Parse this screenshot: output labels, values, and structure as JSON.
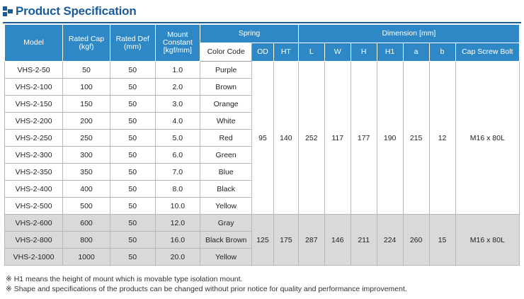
{
  "title": "Product Specification",
  "headers": {
    "model": "Model",
    "rated_cap": [
      "Rated Cap",
      "(kgf)"
    ],
    "rated_def": [
      "Rated Def",
      "(mm)"
    ],
    "mount_constant": [
      "Mount",
      "Constant",
      "[kgf/mm]"
    ],
    "spring": "Spring",
    "dimension": "Dimension [mm]",
    "color_code": "Color Code",
    "od": "OD",
    "ht": "HT",
    "l": "L",
    "w": "W",
    "h": "H",
    "h1": "H1",
    "a": "a",
    "b": "b",
    "cap_screw_bolt": "Cap Screw Bolt"
  },
  "rows": [
    {
      "model": "VHS-2-50",
      "cap": "50",
      "def": "50",
      "constant": "1.0",
      "color": "Purple"
    },
    {
      "model": "VHS-2-100",
      "cap": "100",
      "def": "50",
      "constant": "2.0",
      "color": "Brown"
    },
    {
      "model": "VHS-2-150",
      "cap": "150",
      "def": "50",
      "constant": "3.0",
      "color": "Orange"
    },
    {
      "model": "VHS-2-200",
      "cap": "200",
      "def": "50",
      "constant": "4.0",
      "color": "White"
    },
    {
      "model": "VHS-2-250",
      "cap": "250",
      "def": "50",
      "constant": "5.0",
      "color": "Red"
    },
    {
      "model": "VHS-2-300",
      "cap": "300",
      "def": "50",
      "constant": "6.0",
      "color": "Green"
    },
    {
      "model": "VHS-2-350",
      "cap": "350",
      "def": "50",
      "constant": "7.0",
      "color": "Blue"
    },
    {
      "model": "VHS-2-400",
      "cap": "400",
      "def": "50",
      "constant": "8.0",
      "color": "Black"
    },
    {
      "model": "VHS-2-500",
      "cap": "500",
      "def": "50",
      "constant": "10.0",
      "color": "Yellow"
    },
    {
      "model": "VHS-2-600",
      "cap": "600",
      "def": "50",
      "constant": "12.0",
      "color": "Gray"
    },
    {
      "model": "VHS-2-800",
      "cap": "800",
      "def": "50",
      "constant": "16.0",
      "color": "Black Brown"
    },
    {
      "model": "VHS-2-1000",
      "cap": "1000",
      "def": "50",
      "constant": "20.0",
      "color": "Yellow"
    }
  ],
  "groups": [
    {
      "od": "95",
      "ht": "140",
      "l": "252",
      "w": "117",
      "h": "177",
      "h1": "190",
      "a": "215",
      "b": "12",
      "bolt": "M16 x 80L"
    },
    {
      "od": "125",
      "ht": "175",
      "l": "287",
      "w": "146",
      "h": "211",
      "h1": "224",
      "a": "260",
      "b": "15",
      "bolt": "M16 x 80L"
    }
  ],
  "notes": [
    "※ H1 means the height of mount which is movable type isolation mount.",
    "※ Shape and specifications of the products can be changed without prior notice for quality and performance improvement."
  ],
  "colors": {
    "header_blue": "#2f88c6",
    "title_blue": "#1a5a9e",
    "row_grey": "#d9d9d9"
  }
}
